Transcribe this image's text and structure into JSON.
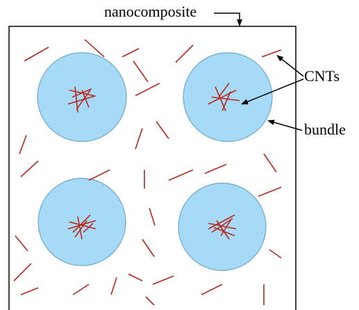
{
  "labels": {
    "top": "nanocomposite",
    "cnts": "CNTs",
    "bundle": "bundle"
  }
}
